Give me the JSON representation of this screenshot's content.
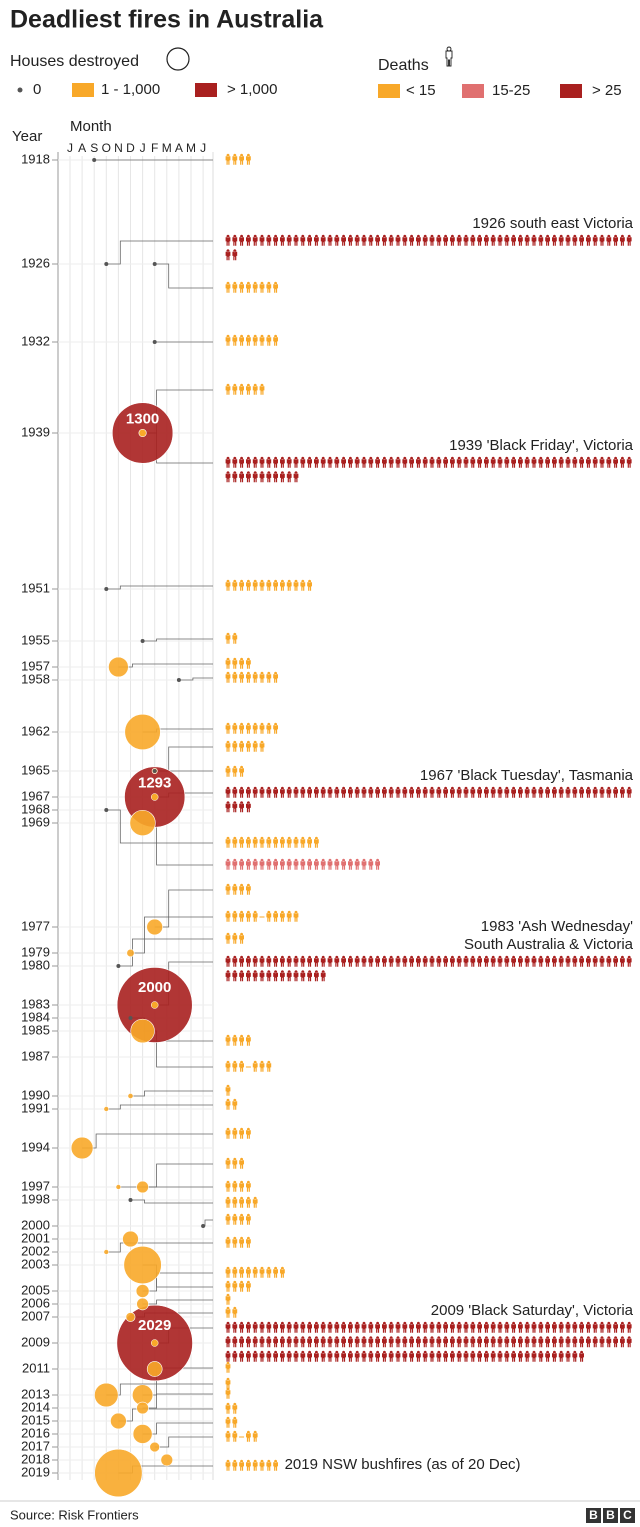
{
  "chart_data": {
    "type": "fire-timeline",
    "title": "Deadliest fires in Australia",
    "houses_legend_title": "Houses destroyed",
    "houses_classes": [
      {
        "label": "0",
        "value": 0,
        "color": "#555555"
      },
      {
        "label": "1 - 1,000",
        "range": [
          1,
          1000
        ],
        "color": "#f8a829"
      },
      {
        "label": "> 1,000",
        "above": 1000,
        "color": "#a9201f"
      }
    ],
    "deaths_legend_title": "Deaths",
    "deaths_classes": [
      {
        "label": "< 15",
        "below": 15,
        "color": "#f8a829"
      },
      {
        "label": "15-25",
        "range": [
          15,
          25
        ],
        "color": "#e07070"
      },
      {
        "label": "> 25",
        "above": 25,
        "color": "#a9201f"
      }
    ],
    "y_label": "Year",
    "x_label": "Month",
    "months": [
      "J",
      "A",
      "S",
      "O",
      "N",
      "D",
      "J",
      "F",
      "M",
      "A",
      "M",
      "J"
    ],
    "ylim": [
      1918,
      2019
    ],
    "yticks": [
      1918,
      1926,
      1932,
      1939,
      1951,
      1955,
      1957,
      1958,
      1962,
      1965,
      1967,
      1968,
      1969,
      1977,
      1979,
      1980,
      1983,
      1984,
      1985,
      1987,
      1990,
      1991,
      1994,
      1997,
      1998,
      2000,
      2001,
      2002,
      2003,
      2005,
      2006,
      2007,
      2009,
      2011,
      2013,
      2014,
      2015,
      2016,
      2017,
      2018,
      2019
    ],
    "fires": [
      {
        "year": 1918,
        "month": 2,
        "houses": 0,
        "deaths": [
          4
        ]
      },
      {
        "year": 1926,
        "month": 3,
        "houses": 0,
        "deaths": [
          62
        ],
        "annotation": [
          "1926 south east Victoria"
        ]
      },
      {
        "year": 1926,
        "month": 7,
        "houses": 0,
        "deaths": [
          8
        ]
      },
      {
        "year": 1932,
        "month": 7,
        "houses": 0,
        "deaths": [
          8
        ]
      },
      {
        "year": 1939,
        "month": 6,
        "houses": 20,
        "deaths": [
          6
        ]
      },
      {
        "year": 1939,
        "month": 6,
        "houses": 1300,
        "deaths": [
          71
        ],
        "annotation": [
          "1939 'Black Friday', Victoria"
        ]
      },
      {
        "year": 1951,
        "month": 3,
        "houses": 0,
        "deaths": [
          13
        ]
      },
      {
        "year": 1955,
        "month": 6,
        "houses": 0,
        "deaths": [
          2
        ]
      },
      {
        "year": 1957,
        "month": 4,
        "houses": 140,
        "deaths": [
          4
        ]
      },
      {
        "year": 1958,
        "month": 9,
        "houses": 0,
        "deaths": [
          8
        ]
      },
      {
        "year": 1962,
        "month": 6,
        "houses": 450,
        "deaths": [
          8
        ]
      },
      {
        "year": 1965,
        "month": 7,
        "houses": 10,
        "deaths": [
          6
        ]
      },
      {
        "year": 1965,
        "month": 7,
        "houses": 0,
        "deaths": [
          3
        ]
      },
      {
        "year": 1967,
        "month": 7,
        "houses": 1293,
        "deaths": [
          64
        ],
        "annotation": [
          "1967 'Black Tuesday', Tasmania"
        ]
      },
      {
        "year": 1968,
        "month": 3,
        "houses": 0,
        "deaths": [
          14
        ]
      },
      {
        "year": 1969,
        "month": 6,
        "houses": 230,
        "deaths": [
          23
        ]
      },
      {
        "year": 1977,
        "month": 7,
        "houses": 90,
        "deaths": [
          4
        ]
      },
      {
        "year": 1979,
        "month": 5,
        "houses": 20,
        "deaths": [
          5,
          5
        ]
      },
      {
        "year": 1980,
        "month": 4,
        "houses": 0,
        "deaths": [
          3
        ]
      },
      {
        "year": 1983,
        "month": 7,
        "houses": 2000,
        "deaths": [
          75
        ],
        "annotation": [
          "1983 'Ash Wednesday'",
          "South Australia & Victoria"
        ]
      },
      {
        "year": 1984,
        "month": 5,
        "houses": 0,
        "deaths": [
          4
        ]
      },
      {
        "year": 1985,
        "month": 6,
        "houses": 200,
        "deaths": [
          3,
          3
        ]
      },
      {
        "year": 1990,
        "month": 5,
        "houses": 10,
        "deaths": [
          1
        ]
      },
      {
        "year": 1991,
        "month": 3,
        "houses": 5,
        "deaths": [
          2
        ]
      },
      {
        "year": 1994,
        "month": 1,
        "houses": 170,
        "deaths": [
          4
        ]
      },
      {
        "year": 1997,
        "month": 6,
        "houses": 50,
        "deaths": [
          3
        ]
      },
      {
        "year": 1997,
        "month": 4,
        "houses": 5,
        "deaths": [
          4
        ]
      },
      {
        "year": 1998,
        "month": 5,
        "houses": 0,
        "deaths": [
          5
        ]
      },
      {
        "year": 2000,
        "month": 11,
        "houses": 0,
        "deaths": [
          4
        ]
      },
      {
        "year": 2001,
        "month": 5,
        "houses": 90
      },
      {
        "year": 2002,
        "month": 3,
        "houses": 5,
        "deaths": [
          4
        ]
      },
      {
        "year": 2003,
        "month": 6,
        "houses": 500,
        "deaths": [
          4
        ]
      },
      {
        "year": 2005,
        "month": 6,
        "houses": 60,
        "deaths": [
          9
        ]
      },
      {
        "year": 2006,
        "month": 6,
        "houses": 50,
        "deaths": [
          1
        ]
      },
      {
        "year": 2007,
        "month": 5,
        "houses": 30,
        "deaths": [
          2
        ]
      },
      {
        "year": 2009,
        "month": 7,
        "houses": 2029,
        "deaths": [
          173
        ],
        "annotation": [
          "2009 'Black Saturday', Victoria"
        ]
      },
      {
        "year": 2011,
        "month": 7,
        "houses": 80
      },
      {
        "year": 2013,
        "month": 6,
        "houses": 150,
        "deaths": [
          1
        ]
      },
      {
        "year": 2013,
        "month": 3,
        "houses": 200,
        "deaths": [
          1
        ]
      },
      {
        "year": 2014,
        "month": 6,
        "houses": 50,
        "deaths": [
          1
        ]
      },
      {
        "year": 2015,
        "month": 4,
        "houses": 90,
        "deaths": [
          2
        ]
      },
      {
        "year": 2016,
        "month": 6,
        "houses": 130,
        "deaths": [
          2
        ]
      },
      {
        "year": 2017,
        "month": 7,
        "houses": 35,
        "deaths": [
          2,
          2
        ]
      },
      {
        "year": 2018,
        "month": 8,
        "houses": 50
      },
      {
        "year": 2019,
        "month": 4,
        "houses": 800,
        "deaths": [
          8
        ],
        "annotation": [
          "2019 NSW bushfires (as of 20 Dec)"
        ]
      }
    ],
    "source": "Source: Risk Frontiers",
    "logo": [
      "B",
      "B",
      "C"
    ]
  }
}
